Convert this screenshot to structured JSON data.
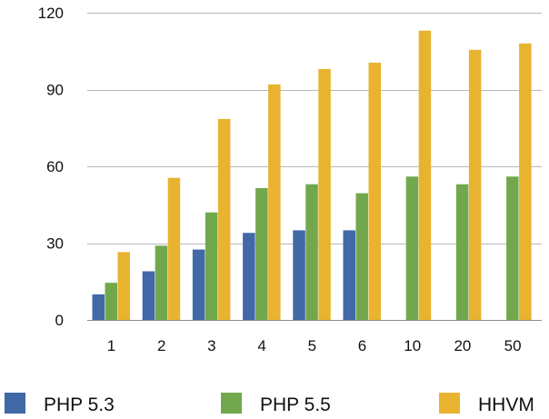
{
  "chart_data": {
    "type": "bar",
    "categories": [
      "1",
      "2",
      "3",
      "4",
      "5",
      "6",
      "10",
      "20",
      "50"
    ],
    "series": [
      {
        "name": "PHP 5.3",
        "color": "#4169a8",
        "values": [
          10,
          19,
          27.5,
          34,
          35,
          35,
          null,
          null,
          null
        ]
      },
      {
        "name": "PHP 5.5",
        "color": "#72a84d",
        "values": [
          14.5,
          29,
          42,
          51.5,
          53,
          49.5,
          56,
          53,
          56
        ]
      },
      {
        "name": "HHVM",
        "color": "#e8b32f",
        "values": [
          26.5,
          55.5,
          78.5,
          92,
          98,
          100.5,
          113,
          105.5,
          108
        ]
      }
    ],
    "ylim": [
      0,
      120
    ],
    "yticks": [
      0,
      30,
      60,
      90,
      120
    ],
    "grid": true,
    "legend": "bottom"
  }
}
